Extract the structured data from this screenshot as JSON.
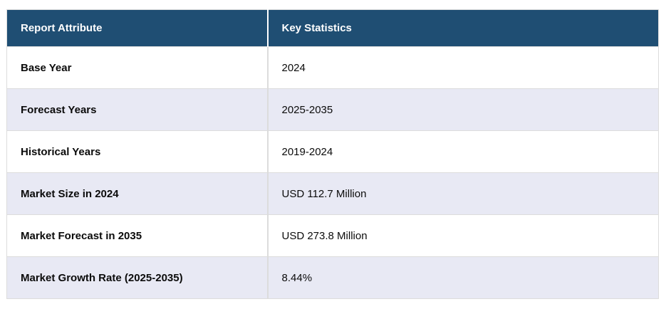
{
  "chart_data": {
    "type": "table",
    "columns": [
      "Report Attribute",
      "Key Statistics"
    ],
    "rows": [
      [
        "Base Year",
        "2024"
      ],
      [
        "Forecast Years",
        "2025-2035"
      ],
      [
        "Historical Years",
        "2019-2024"
      ],
      [
        "Market Size in 2024",
        "USD 112.7 Million"
      ],
      [
        "Market Forecast in 2035",
        "USD 273.8 Million"
      ],
      [
        "Market Growth Rate (2025-2035)",
        "8.44%"
      ]
    ]
  },
  "colors": {
    "page_bg": "#FFFFFF",
    "header_bg": "#1F4E73",
    "header_text": "#FFFFFF",
    "row_bg": "#FFFFFF",
    "row_alt_bg": "#E8E9F4",
    "border": "#DCDCDC",
    "body_text": "#0B0B0B"
  }
}
